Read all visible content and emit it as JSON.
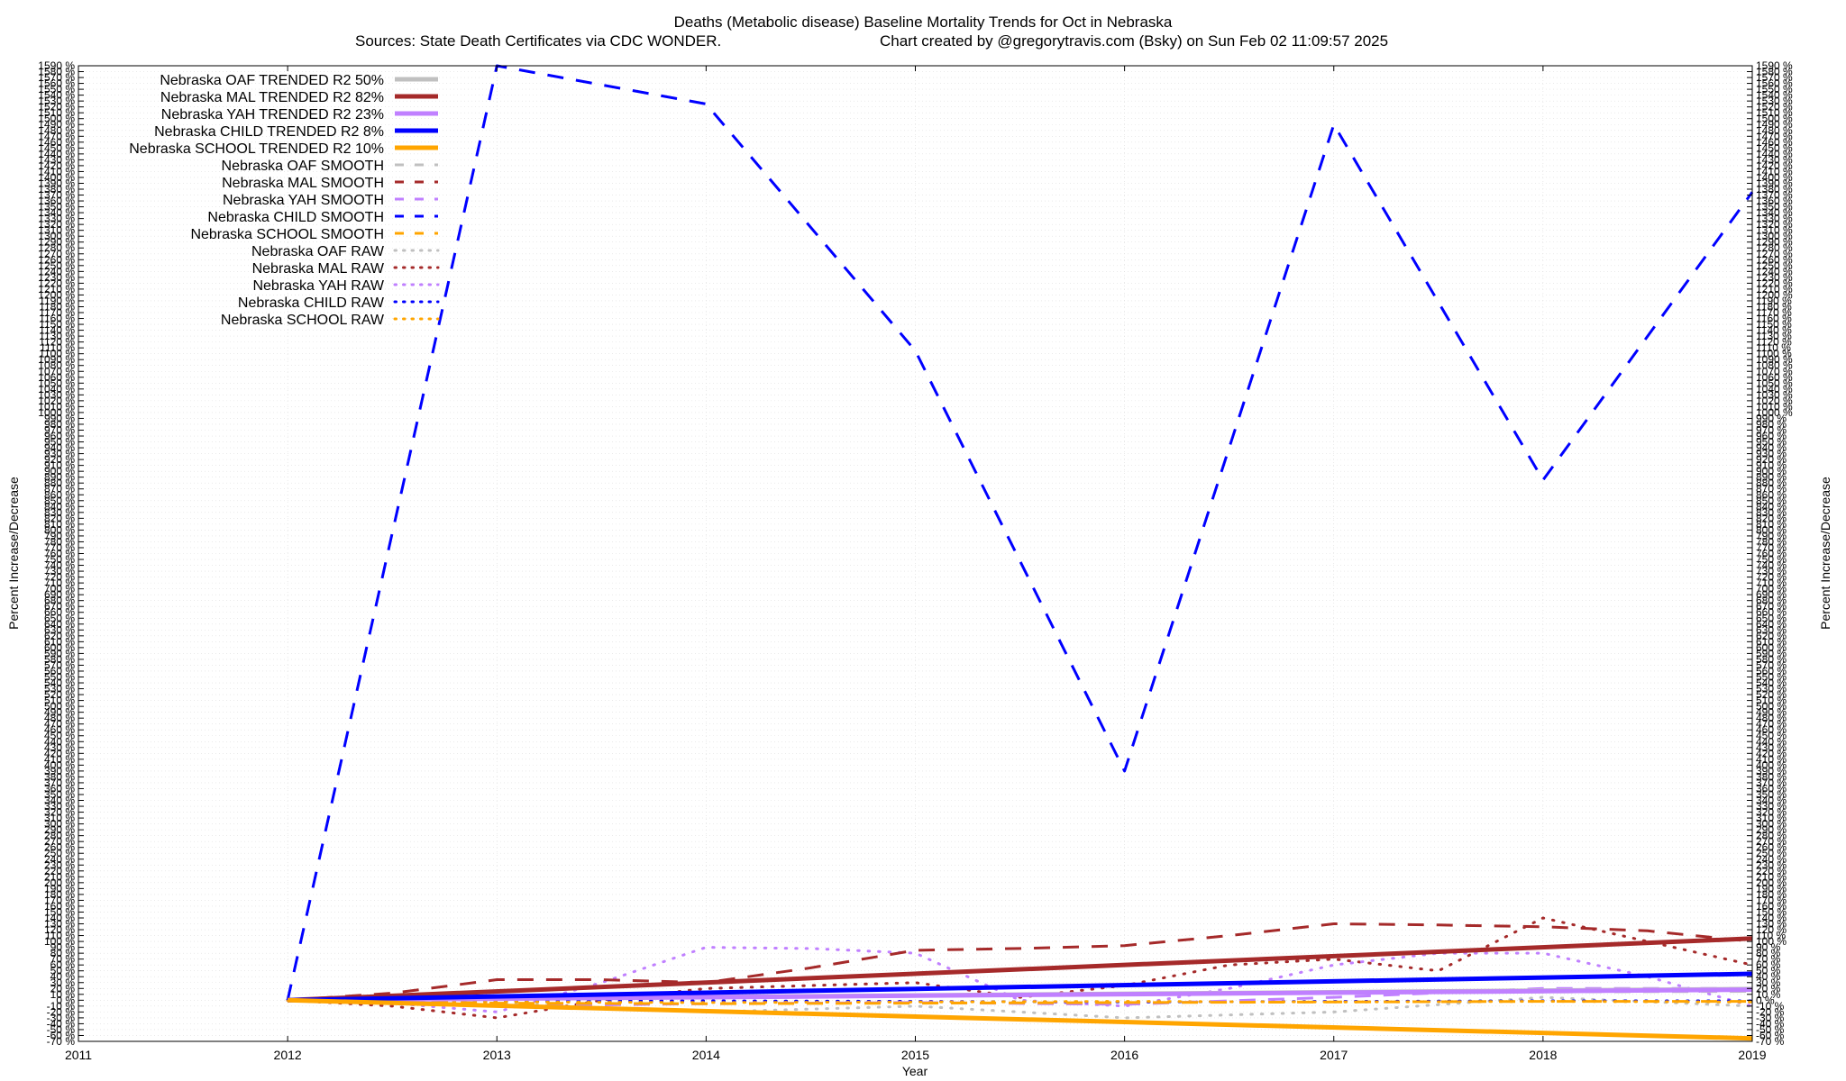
{
  "chart_data": {
    "type": "line",
    "title": "Deaths (Metabolic disease)  Baseline Mortality Trends for Oct in Nebraska",
    "subtitle_left": "Sources: State Death Certificates via CDC WONDER.",
    "subtitle_right": "Chart created by @gregorytravis.com (Bsky) on Sun Feb 02 11:09:57 2025",
    "xlabel": "Year",
    "ylabel_left": "Percent Increase/Decrease",
    "ylabel_right": "Percent Increase/Decrease",
    "xlim": [
      2011,
      2019
    ],
    "ylim": [
      -70,
      1590
    ],
    "x_ticks": [
      2011,
      2012,
      2013,
      2014,
      2015,
      2016,
      2017,
      2018,
      2019
    ],
    "y_tick_step": 10,
    "y_tick_suffix": " %",
    "grid": true,
    "legend_position": "top-left",
    "series": [
      {
        "name": "Nebraska OAF TRENDED R2  50%",
        "style": "trend",
        "color": "#c0c0c0",
        "x": [
          2012,
          2019
        ],
        "y": [
          0,
          19
        ]
      },
      {
        "name": "Nebraska MAL TRENDED R2  82%",
        "style": "trend",
        "color": "#a52a2a",
        "x": [
          2012,
          2019
        ],
        "y": [
          0,
          105
        ]
      },
      {
        "name": "Nebraska YAH TRENDED R2  23%",
        "style": "trend",
        "color": "#c080ff",
        "x": [
          2012,
          2019
        ],
        "y": [
          0,
          18
        ]
      },
      {
        "name": "Nebraska CHILD TRENDED R2   8%",
        "style": "trend",
        "color": "#0000ff",
        "x": [
          2012,
          2019
        ],
        "y": [
          0,
          45
        ]
      },
      {
        "name": "Nebraska SCHOOL TRENDED R2  10%",
        "style": "trend",
        "color": "#ffa500",
        "x": [
          2012,
          2019
        ],
        "y": [
          0,
          -65
        ]
      },
      {
        "name": "Nebraska OAF SMOOTH",
        "style": "smooth",
        "color": "#c0c0c0",
        "x": [
          2012,
          2013,
          2014,
          2015,
          2016,
          2017,
          2018,
          2019
        ],
        "y": [
          0,
          4,
          6,
          8,
          10,
          12,
          14,
          15
        ]
      },
      {
        "name": "Nebraska MAL SMOOTH",
        "style": "smooth",
        "color": "#a52a2a",
        "x": [
          2012,
          2012.5,
          2013,
          2013.5,
          2014,
          2014.5,
          2015,
          2015.5,
          2016,
          2016.5,
          2017,
          2017.5,
          2018,
          2018.5,
          2019
        ],
        "y": [
          0,
          12,
          35,
          35,
          30,
          55,
          85,
          88,
          93,
          110,
          130,
          128,
          125,
          118,
          100
        ]
      },
      {
        "name": "Nebraska YAH SMOOTH",
        "style": "smooth",
        "color": "#c080ff",
        "x": [
          2012,
          2013,
          2014,
          2015,
          2016,
          2017,
          2018,
          2019
        ],
        "y": [
          0,
          -10,
          -6,
          -4,
          -7,
          5,
          20,
          20
        ]
      },
      {
        "name": "Nebraska CHILD SMOOTH",
        "style": "smooth",
        "color": "#0000ff",
        "x": [
          2012,
          2013,
          2014,
          2015,
          2016,
          2017,
          2018,
          2019
        ],
        "y": [
          0,
          1590,
          1525,
          1105,
          390,
          1490,
          885,
          1375
        ]
      },
      {
        "name": "Nebraska SCHOOL SMOOTH",
        "style": "smooth",
        "color": "#ffa500",
        "x": [
          2012,
          2013,
          2014,
          2015,
          2016,
          2017,
          2018,
          2019
        ],
        "y": [
          0,
          -5,
          -6,
          -5,
          -4,
          -3,
          -2,
          -2
        ]
      },
      {
        "name": "Nebraska OAF RAW",
        "style": "raw",
        "color": "#c0c0c0",
        "x": [
          2012,
          2013,
          2014,
          2015,
          2016,
          2017,
          2018,
          2019
        ],
        "y": [
          0,
          -5,
          -20,
          -10,
          -30,
          -20,
          5,
          -10
        ]
      },
      {
        "name": "Nebraska MAL RAW",
        "style": "raw",
        "color": "#a52a2a",
        "x": [
          2012,
          2012.5,
          2013,
          2013.5,
          2014,
          2014.5,
          2015,
          2015.5,
          2016,
          2016.5,
          2017,
          2017.5,
          2018,
          2018.5,
          2019
        ],
        "y": [
          0,
          -10,
          -30,
          0,
          20,
          25,
          30,
          5,
          25,
          60,
          70,
          50,
          140,
          100,
          60
        ]
      },
      {
        "name": "Nebraska YAH RAW",
        "style": "raw",
        "color": "#c080ff",
        "x": [
          2012,
          2012.5,
          2013,
          2013.5,
          2014,
          2014.5,
          2015,
          2015.5,
          2016,
          2016.5,
          2017,
          2017.5,
          2018,
          2018.5,
          2019
        ],
        "y": [
          0,
          -5,
          -20,
          30,
          90,
          88,
          80,
          0,
          -10,
          20,
          60,
          80,
          80,
          40,
          -10
        ]
      },
      {
        "name": "Nebraska CHILD RAW",
        "style": "raw",
        "color": "#0000ff",
        "x": [
          2012,
          2013,
          2014,
          2015,
          2016,
          2017,
          2018,
          2019
        ],
        "y": [
          0,
          -1,
          -1,
          -2,
          -3,
          -2,
          -1,
          -1
        ]
      },
      {
        "name": "Nebraska SCHOOL RAW",
        "style": "raw",
        "color": "#ffa500",
        "x": [
          2012,
          2013,
          2014,
          2015,
          2016,
          2017,
          2018,
          2019
        ],
        "y": [
          0,
          -3,
          -4,
          -3,
          -2,
          -3,
          -2,
          -3
        ]
      }
    ]
  }
}
